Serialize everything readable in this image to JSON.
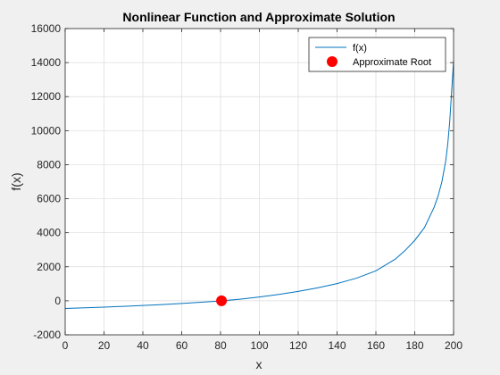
{
  "chart_data": {
    "type": "line",
    "title": "Nonlinear Function and Approximate Solution",
    "xlabel": "x",
    "ylabel": "f(x)",
    "xlim": [
      0,
      200
    ],
    "ylim": [
      -2000,
      16000
    ],
    "x_ticks": [
      0,
      20,
      40,
      60,
      80,
      100,
      120,
      140,
      160,
      180,
      200
    ],
    "y_ticks": [
      -2000,
      0,
      2000,
      4000,
      6000,
      8000,
      10000,
      12000,
      14000,
      16000
    ],
    "grid": true,
    "legend_position": "top-right",
    "series": [
      {
        "name": "f(x)",
        "color": "#0072bd",
        "style": "line",
        "x": [
          0,
          10,
          20,
          30,
          40,
          50,
          60,
          70,
          80,
          90,
          100,
          110,
          120,
          130,
          140,
          150,
          160,
          170,
          175,
          180,
          185,
          190,
          192,
          194,
          196,
          197,
          198,
          199,
          199.5,
          200
        ],
        "y": [
          -450,
          -410,
          -370,
          -325,
          -275,
          -220,
          -155,
          -85,
          -10,
          95,
          225,
          375,
          550,
          760,
          1010,
          1330,
          1760,
          2450,
          2950,
          3550,
          4300,
          5500,
          6150,
          7000,
          8250,
          9200,
          10500,
          12300,
          13200,
          14100
        ]
      },
      {
        "name": "Approximate Root",
        "color": "#ff0000",
        "style": "marker",
        "x": [
          80.5
        ],
        "y": [
          0
        ]
      }
    ]
  }
}
